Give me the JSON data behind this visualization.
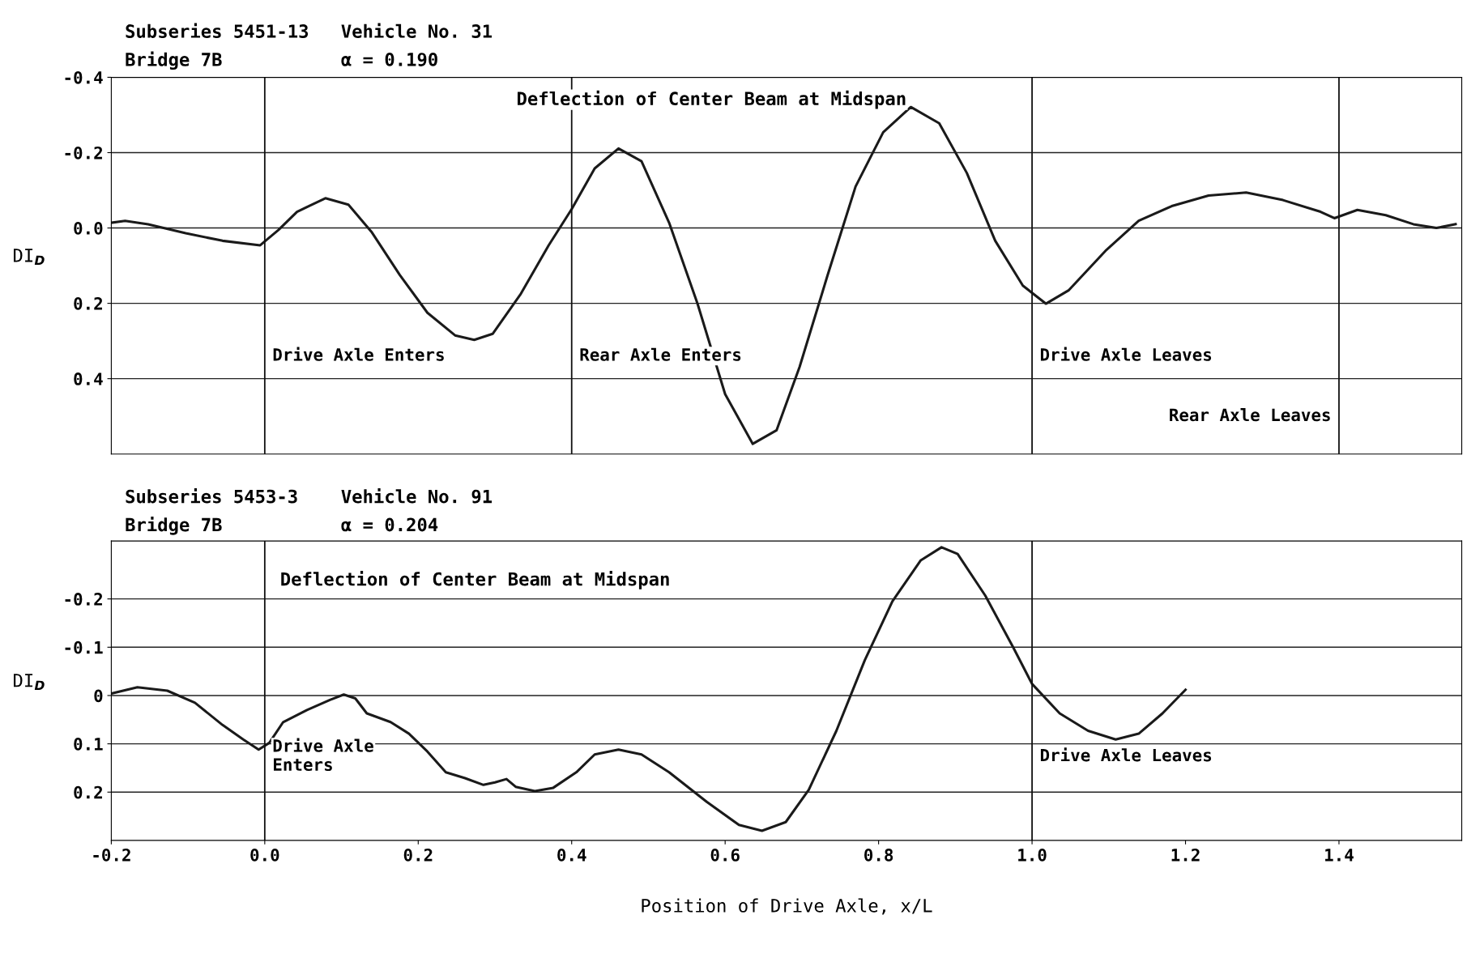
{
  "chart_data": [
    {
      "type": "line",
      "title": "Deflection of Center Beam at Midspan",
      "ylabel": "DI$_{D}$",
      "annotations": [
        "Subseries 5451-13",
        "Bridge 7B",
        "Vehicle No. 31",
        "α = 0.190"
      ],
      "series": [
        {
          "color": "#1a1a1a",
          "x": [
            -0.2,
            -0.182,
            -0.152,
            -0.103,
            -0.055,
            -0.006,
            0.018,
            0.042,
            0.079,
            0.109,
            0.139,
            0.176,
            0.212,
            0.248,
            0.273,
            0.297,
            0.333,
            0.37,
            0.4,
            0.43,
            0.461,
            0.491,
            0.527,
            0.564,
            0.6,
            0.636,
            0.667,
            0.697,
            0.733,
            0.77,
            0.806,
            0.842,
            0.879,
            0.915,
            0.952,
            0.988,
            1.018,
            1.048,
            1.097,
            1.139,
            1.182,
            1.23,
            1.279,
            1.327,
            1.376,
            1.394,
            1.424,
            1.461,
            1.497,
            1.527,
            1.552
          ],
          "values": [
            -0.014,
            -0.019,
            -0.01,
            0.014,
            0.034,
            0.046,
            0.005,
            -0.043,
            -0.079,
            -0.062,
            0.01,
            0.125,
            0.225,
            0.285,
            0.297,
            0.281,
            0.177,
            0.046,
            -0.05,
            -0.158,
            -0.211,
            -0.177,
            -0.014,
            0.201,
            0.441,
            0.573,
            0.537,
            0.369,
            0.129,
            -0.11,
            -0.254,
            -0.321,
            -0.278,
            -0.146,
            0.034,
            0.153,
            0.201,
            0.165,
            0.058,
            -0.019,
            -0.058,
            -0.086,
            -0.094,
            -0.074,
            -0.043,
            -0.026,
            -0.048,
            -0.034,
            -0.01,
            0.0,
            -0.01
          ]
        }
      ],
      "xlim": [
        -0.2,
        1.56
      ],
      "ylim": [
        0.6,
        -0.4
      ],
      "yticks": [
        -0.4,
        -0.2,
        {
          "value": 0,
          "label": "0.0"
        },
        0.2,
        0.4
      ],
      "tick_labels": "y",
      "grid": "y",
      "legend": false,
      "marker": "none",
      "line_style": "solid",
      "ref_lines": [
        {
          "axis": "x",
          "value": 0.0,
          "label": "Drive Axle Enters"
        },
        {
          "axis": "x",
          "value": 0.4,
          "label": "Rear Axle Enters"
        },
        {
          "axis": "x",
          "value": 1.0,
          "label": "Drive Axle Leaves"
        },
        {
          "axis": "x",
          "value": 1.4,
          "label": "Rear Axle Leaves"
        }
      ]
    },
    {
      "type": "line",
      "title": "Deflection of Center Beam at Midspan",
      "ylabel": "DI$_{D}$",
      "xlabel": "Position of Drive Axle, x/L",
      "annotations": [
        "Subseries 5453-3",
        "Bridge 7B",
        "Vehicle No. 91",
        "α = 0.204"
      ],
      "series": [
        {
          "color": "#1a1a1a",
          "x": [
            -0.2,
            -0.166,
            -0.127,
            -0.091,
            -0.055,
            -0.028,
            -0.008,
            0.006,
            0.024,
            0.055,
            0.085,
            0.103,
            0.118,
            0.133,
            0.164,
            0.188,
            0.212,
            0.236,
            0.261,
            0.285,
            0.3,
            0.315,
            0.327,
            0.352,
            0.376,
            0.406,
            0.43,
            0.461,
            0.491,
            0.527,
            0.576,
            0.618,
            0.648,
            0.679,
            0.709,
            0.745,
            0.782,
            0.818,
            0.855,
            0.882,
            0.903,
            0.939,
            0.976,
            1.0,
            1.036,
            1.073,
            1.109,
            1.139,
            1.17,
            1.2
          ],
          "values": [
            -0.004,
            -0.017,
            -0.01,
            0.015,
            0.061,
            0.091,
            0.112,
            0.098,
            0.055,
            0.03,
            0.009,
            -0.002,
            0.006,
            0.037,
            0.055,
            0.079,
            0.116,
            0.159,
            0.171,
            0.185,
            0.18,
            0.173,
            0.189,
            0.198,
            0.191,
            0.159,
            0.122,
            0.112,
            0.122,
            0.159,
            0.22,
            0.268,
            0.28,
            0.262,
            0.195,
            0.073,
            -0.073,
            -0.195,
            -0.28,
            -0.307,
            -0.293,
            -0.207,
            -0.098,
            -0.024,
            0.037,
            0.073,
            0.091,
            0.079,
            0.037,
            -0.012
          ]
        }
      ],
      "xlim": [
        -0.2,
        1.56
      ],
      "ylim": [
        0.3,
        -0.32
      ],
      "yticks": [
        -0.2,
        -0.1,
        {
          "value": 0,
          "label": "0"
        },
        0.1,
        0.2
      ],
      "xticks": [
        -0.2,
        {
          "value": 0,
          "label": "0.0"
        },
        0.2,
        0.4,
        0.6,
        0.8,
        {
          "value": 1,
          "label": "1.0"
        },
        1.2,
        1.4
      ],
      "grid": "y",
      "legend": false,
      "marker": "none",
      "line_style": "solid",
      "ref_lines": [
        {
          "axis": "x",
          "value": 0.0,
          "label": "Drive Axle\nEnters"
        },
        {
          "axis": "x",
          "value": 1.0,
          "label": "Drive Axle Leaves"
        }
      ]
    }
  ]
}
